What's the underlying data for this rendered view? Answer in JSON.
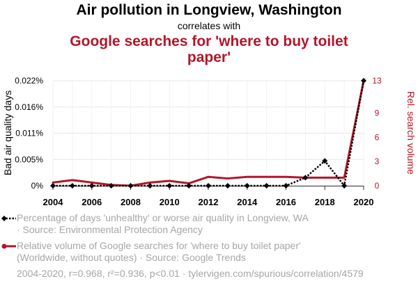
{
  "header": {
    "title": "Air pollution in Longview, Washington",
    "subtitle": "correlates with",
    "title2": "Google searches for 'where to buy toilet paper'"
  },
  "chart_data": {
    "type": "line",
    "x": [
      2004,
      2005,
      2006,
      2007,
      2008,
      2009,
      2010,
      2011,
      2012,
      2013,
      2014,
      2015,
      2016,
      2017,
      2018,
      2019,
      2020
    ],
    "series": [
      {
        "name": "Percentage of days 'unhealthy' or worse air quality in Longview, WA",
        "axis": "left",
        "color": "#000000",
        "style": "dotted",
        "marker": "diamond",
        "values": [
          0,
          0,
          0,
          0,
          0,
          0,
          0,
          0,
          0,
          0,
          0,
          0,
          0,
          0.0017,
          0.0052,
          0,
          0.022
        ]
      },
      {
        "name": "Relative volume of Google searches for 'where to buy toilet paper'",
        "axis": "right",
        "color": "#b4152a",
        "style": "solid",
        "values": [
          0.4,
          0.7,
          0.4,
          0.1,
          0.0,
          0.4,
          0.6,
          0.3,
          1.1,
          0.9,
          1.1,
          1.1,
          1.1,
          1.0,
          1.0,
          1.0,
          13
        ]
      }
    ],
    "ylabel_left": "Bad air quality days",
    "ylabel_right": "Rel. search volume",
    "y_left_range": [
      0,
      0.022
    ],
    "y_right_range": [
      0,
      13
    ],
    "y_left_ticks": [
      {
        "value": 0,
        "label": "0%"
      },
      {
        "value": 0.0055,
        "label": "0.005%"
      },
      {
        "value": 0.011,
        "label": "0.011%"
      },
      {
        "value": 0.0165,
        "label": "0.016%"
      },
      {
        "value": 0.022,
        "label": "0.022%"
      }
    ],
    "y_right_ticks": [
      {
        "value": 0,
        "label": "0"
      },
      {
        "value": 3,
        "label": "3"
      },
      {
        "value": 6,
        "label": "6"
      },
      {
        "value": 9,
        "label": "9"
      },
      {
        "value": 13,
        "label": "13"
      }
    ],
    "x_ticks": [
      2004,
      2006,
      2008,
      2010,
      2012,
      2014,
      2016,
      2018,
      2020
    ],
    "grid": true
  },
  "legend": {
    "series1_text": "Percentage of days 'unhealthy' or worse air quality in Longview, WA",
    "series1_source": "· Source: Environmental Protection Agency",
    "series2_text": "Relative volume of Google searches for 'where to buy toilet paper'",
    "series2_source": "(Worldwide, without quotes) · Source: Google Trends"
  },
  "footer": {
    "text": "2004-2020, r=0.968, r²=0.936, p<0.01 · tylervigen.com/spurious/correlation/4579"
  }
}
